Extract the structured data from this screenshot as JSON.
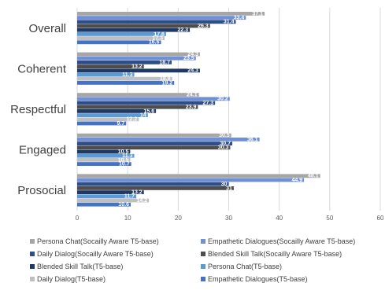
{
  "chart_data": {
    "type": "bar",
    "orientation": "horizontal",
    "categories": [
      "Overall",
      "Coherent",
      "Respectful",
      "Engaged",
      "Prosocial"
    ],
    "xlim": [
      0,
      60
    ],
    "xticks": [
      0,
      10,
      20,
      30,
      40,
      50,
      60
    ],
    "grid": true,
    "legend_position": "bottom",
    "series": [
      {
        "name": "Persona Chat(Socailly Aware T5-base)",
        "color": "#a6a6a6",
        "values": [
          37.1,
          24.3,
          24.1,
          30.5,
          48.1
        ]
      },
      {
        "name": "Empathetic Dialogues(Socailly Aware T5-base)",
        "color": "#6f8fd6",
        "values": [
          33.4,
          23.5,
          30.2,
          36.1,
          44.9
        ]
      },
      {
        "name": "Daily Dialog(Socailly Aware T5-base)",
        "color": "#2f4e88",
        "values": [
          31.4,
          18.7,
          27.3,
          30.7,
          30
        ]
      },
      {
        "name": "Blended Skill Talk(Socailly Aware T5-base)",
        "color": "#4d4d4d",
        "values": [
          26.3,
          13.2,
          23.9,
          30.3,
          31
        ]
      },
      {
        "name": "Blended Skill Talk(T5-base)",
        "color": "#1f3864",
        "values": [
          22.3,
          24.3,
          15.6,
          10.5,
          13.2
        ]
      },
      {
        "name": "Persona Chat(T5-base)",
        "color": "#5b9bd5",
        "values": [
          17.6,
          11.3,
          14,
          11.3,
          11.7
        ]
      },
      {
        "name": "Daily Dialog(T5-base)",
        "color": "#bfbfbf",
        "values": [
          17.3,
          18.8,
          12.2,
          10.5,
          14.2
        ]
      },
      {
        "name": "Empathetic Dialogues(T5-base)",
        "color": "#4472c4",
        "values": [
          16.6,
          19.2,
          9.7,
          10.7,
          10.6
        ]
      }
    ]
  }
}
